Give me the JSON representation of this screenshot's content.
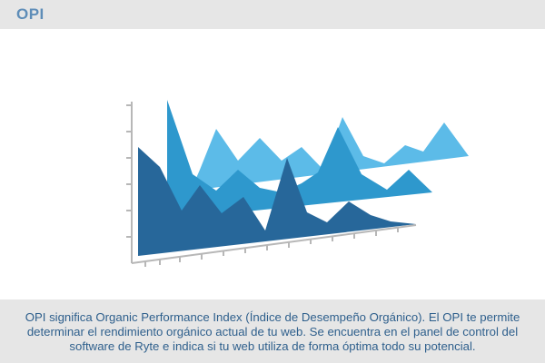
{
  "header": {
    "title": "OPI"
  },
  "illustration": {
    "description_icon": "3d-area-chart-illustration",
    "colors": {
      "back": "#5cbbe8",
      "middle": "#2e98cd",
      "front": "#27679a",
      "axis": "#b7b7b7"
    }
  },
  "caption": {
    "text": "OPI significa Organic Performance Index (Índice de Desempeño Orgánico). El OPI te permite determinar el rendimiento orgánico actual de tu web. Se encuentra en el panel de control del software de Ryte e indica si tu web utiliza de forma óptima todo su potencial."
  }
}
